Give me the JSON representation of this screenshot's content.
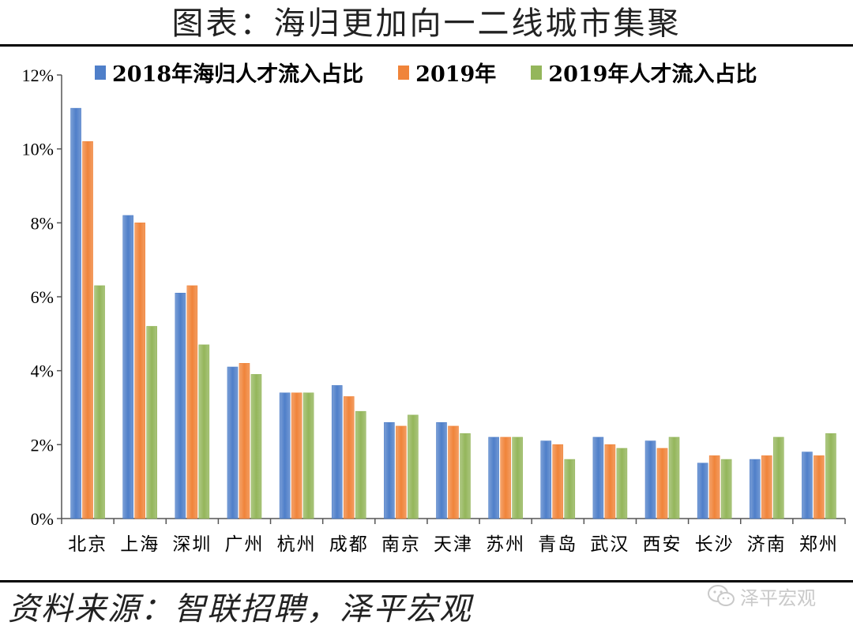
{
  "header": {
    "title": "图表：海归更加向一二线城市集聚"
  },
  "footer": {
    "source": "资料来源：智联招聘，泽平宏观",
    "watermark": "泽平宏观"
  },
  "colors": {
    "series1": "#4f7fc9",
    "series2": "#f0843a",
    "series3": "#94b65b",
    "axis": "#555555"
  },
  "chart_data": {
    "type": "bar",
    "title": "海归更加向一二线城市集聚",
    "xlabel": "",
    "ylabel": "",
    "ylim": [
      0,
      12
    ],
    "yticks": [
      "0%",
      "2%",
      "4%",
      "6%",
      "8%",
      "10%",
      "12%"
    ],
    "ytick_values": [
      0,
      2,
      4,
      6,
      8,
      10,
      12
    ],
    "legend_position": "top",
    "categories": [
      "北京",
      "上海",
      "深圳",
      "广州",
      "杭州",
      "成都",
      "南京",
      "天津",
      "苏州",
      "青岛",
      "武汉",
      "西安",
      "长沙",
      "济南",
      "郑州"
    ],
    "series": [
      {
        "name": "2018年海归人才流入占比",
        "values": [
          11.1,
          8.2,
          6.1,
          4.1,
          3.4,
          3.6,
          2.6,
          2.6,
          2.2,
          2.1,
          2.2,
          2.1,
          1.5,
          1.6,
          1.8
        ]
      },
      {
        "name": "2019年",
        "values": [
          10.2,
          8.0,
          6.3,
          4.2,
          3.4,
          3.3,
          2.5,
          2.5,
          2.2,
          2.0,
          2.0,
          1.9,
          1.7,
          1.7,
          1.7
        ]
      },
      {
        "name": "2019年人才流入占比",
        "values": [
          6.3,
          5.2,
          4.7,
          3.9,
          3.4,
          2.9,
          2.8,
          2.3,
          2.2,
          1.6,
          1.9,
          2.2,
          1.6,
          2.2,
          2.3
        ]
      }
    ]
  }
}
